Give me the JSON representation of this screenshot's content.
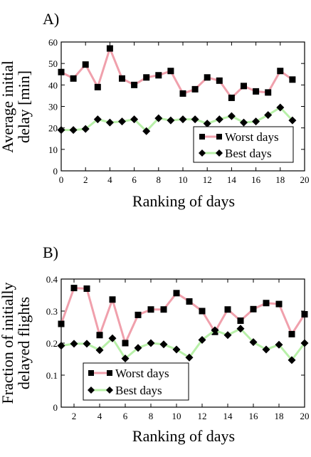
{
  "chart_data": [
    {
      "type": "line",
      "panel_label": "A)",
      "xlabel": "Ranking of days",
      "ylabel_lines": [
        "Average initial",
        "delay [min]"
      ],
      "xlim": [
        0,
        20
      ],
      "ylim": [
        0,
        60
      ],
      "xticks": [
        0,
        2,
        4,
        6,
        8,
        10,
        12,
        14,
        16,
        18,
        20
      ],
      "yticks": [
        0,
        10,
        20,
        30,
        40,
        50,
        60
      ],
      "tick_labels_x": [
        "0",
        "2",
        "4",
        "6",
        "8",
        "10",
        "12",
        "14",
        "16",
        "18",
        "20"
      ],
      "tick_labels_y": [
        "0",
        "10",
        "20",
        "30",
        "40",
        "50",
        "60"
      ],
      "grid": false,
      "legend_position": "bottom-right",
      "x": [
        0,
        1,
        2,
        3,
        4,
        5,
        6,
        7,
        8,
        9,
        10,
        11,
        12,
        13,
        14,
        15,
        16,
        17,
        18,
        19
      ],
      "series": [
        {
          "name": "Worst days",
          "marker": "square",
          "line_color": "#f0a0ac",
          "values": [
            46,
            43,
            49.5,
            39,
            57,
            43,
            40,
            43.5,
            44.5,
            46.5,
            36,
            38,
            43.5,
            42,
            34,
            39.5,
            37,
            36.5,
            46.5,
            42.5
          ]
        },
        {
          "name": "Best days",
          "marker": "diamond",
          "line_color": "#b8f0a8",
          "values": [
            19,
            19,
            19.5,
            24,
            22.5,
            23,
            24,
            18.5,
            24.5,
            23.5,
            24,
            24,
            22,
            24,
            25.5,
            22.5,
            23,
            26,
            29.5,
            23.5
          ]
        }
      ]
    },
    {
      "type": "line",
      "panel_label": "B)",
      "xlabel": "Ranking of days",
      "ylabel_lines": [
        "Fraction of initially",
        "delayed flights"
      ],
      "xlim": [
        1,
        20
      ],
      "ylim": [
        0,
        0.4
      ],
      "xticks": [
        2,
        4,
        6,
        8,
        10,
        12,
        14,
        16,
        18,
        20
      ],
      "yticks": [
        0,
        0.1,
        0.2,
        0.3,
        0.4
      ],
      "tick_labels_x": [
        "2",
        "4",
        "6",
        "8",
        "10",
        "12",
        "14",
        "16",
        "18",
        "20"
      ],
      "tick_labels_y": [
        "0",
        "0.1",
        "0.2",
        "0.3",
        "0.4"
      ],
      "grid": false,
      "legend_position": "bottom-left",
      "x": [
        1,
        2,
        3,
        4,
        5,
        6,
        7,
        8,
        9,
        10,
        11,
        12,
        13,
        14,
        15,
        16,
        17,
        18,
        19,
        20
      ],
      "series": [
        {
          "name": "Worst days",
          "marker": "square",
          "line_color": "#f0a0ac",
          "values": [
            0.26,
            0.372,
            0.37,
            0.225,
            0.336,
            0.2,
            0.288,
            0.305,
            0.305,
            0.356,
            0.33,
            0.3,
            0.235,
            0.305,
            0.27,
            0.306,
            0.325,
            0.322,
            0.228,
            0.29
          ]
        },
        {
          "name": "Best days",
          "marker": "diamond",
          "line_color": "#b8f0a8",
          "values": [
            0.192,
            0.198,
            0.198,
            0.178,
            0.215,
            0.152,
            0.185,
            0.2,
            0.196,
            0.18,
            0.155,
            0.21,
            0.24,
            0.225,
            0.245,
            0.203,
            0.18,
            0.195,
            0.147,
            0.2
          ]
        }
      ]
    }
  ]
}
